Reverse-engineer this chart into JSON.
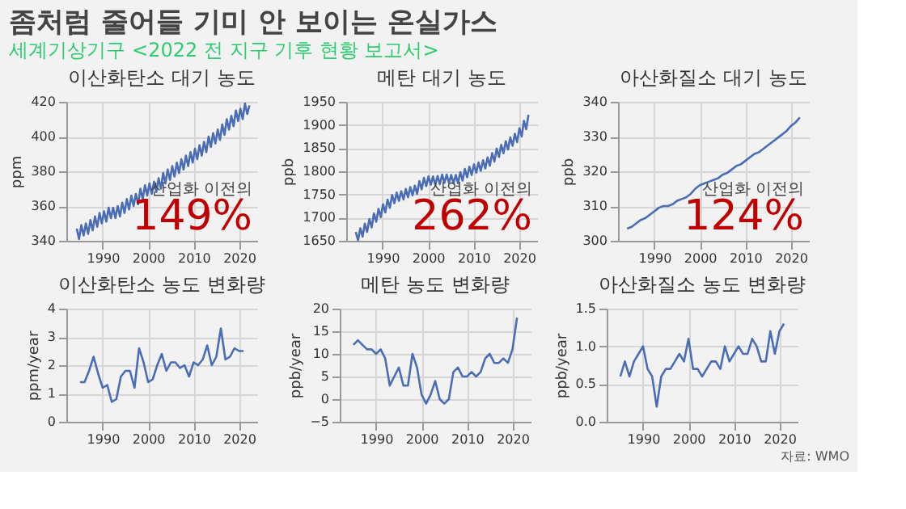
{
  "chart_data": [
    {
      "type": "other",
      "title": "좀처럼 줄어들 기미 안 보이는 온실가스",
      "subtitle": "세계기상기구 <2022 전 지구 기후 현황 보고서>",
      "annotations": [
        "자료: WMO"
      ]
    },
    {
      "type": "line",
      "title": "이산화탄소 대기 농도",
      "ylabel": "ppm",
      "xlim": [
        1982,
        2024
      ],
      "xticks": [
        1990,
        2000,
        2010,
        2020
      ],
      "ylim": [
        340,
        420
      ],
      "yticks": [
        340,
        360,
        380,
        400,
        420
      ],
      "grid": true,
      "annotations": [
        "산업화 이전의",
        "149%"
      ],
      "series": [
        {
          "color": "#4a6db5",
          "x": [
            1984.3,
            1984.8,
            1985.3,
            1985.8,
            1986.3,
            1986.8,
            1987.3,
            1987.8,
            1988.3,
            1988.8,
            1989.3,
            1989.8,
            1990.3,
            1990.8,
            1991.3,
            1991.8,
            1992.3,
            1992.8,
            1993.3,
            1993.8,
            1994.3,
            1994.8,
            1995.3,
            1995.8,
            1996.3,
            1996.8,
            1997.3,
            1997.8,
            1998.3,
            1998.8,
            1999.3,
            1999.8,
            2000.3,
            2000.8,
            2001.3,
            2001.8,
            2002.3,
            2002.8,
            2003.3,
            2003.8,
            2004.3,
            2004.8,
            2005.3,
            2005.8,
            2006.3,
            2006.8,
            2007.3,
            2007.8,
            2008.3,
            2008.8,
            2009.3,
            2009.8,
            2010.3,
            2010.8,
            2011.3,
            2011.8,
            2012.3,
            2012.8,
            2013.3,
            2013.8,
            2014.3,
            2014.8,
            2015.3,
            2015.8,
            2016.3,
            2016.8,
            2017.3,
            2017.8,
            2018.3,
            2018.8,
            2019.3,
            2019.8,
            2020.3,
            2020.8,
            2021.3,
            2021.8,
            2022.3
          ],
          "values": [
            347,
            341,
            349,
            343,
            350,
            344,
            352,
            346,
            354,
            348,
            356,
            350,
            357,
            351,
            359,
            353,
            359,
            353,
            360,
            354,
            362,
            356,
            364,
            358,
            366,
            360,
            367,
            361,
            370,
            364,
            372,
            366,
            373,
            367,
            374,
            368,
            376,
            370,
            379,
            373,
            381,
            375,
            383,
            377,
            385,
            379,
            387,
            381,
            389,
            383,
            391,
            385,
            393,
            387,
            395,
            389,
            397,
            391,
            400,
            394,
            402,
            396,
            404,
            398,
            407,
            401,
            410,
            404,
            412,
            406,
            415,
            409,
            416,
            410,
            419,
            413,
            418
          ]
        }
      ]
    },
    {
      "type": "line",
      "title": "메탄 대기 농도",
      "ylabel": "ppb",
      "xlim": [
        1982,
        2024
      ],
      "xticks": [
        1990,
        2000,
        2010,
        2020
      ],
      "ylim": [
        1650,
        1950
      ],
      "yticks": [
        1650,
        1700,
        1750,
        1800,
        1850,
        1900,
        1950
      ],
      "grid": true,
      "annotations": [
        "산업화 이전의",
        "262%"
      ],
      "series": [
        {
          "color": "#4a6db5",
          "x": [
            1984.1,
            1984.6,
            1985.1,
            1985.6,
            1986.1,
            1986.6,
            1987.1,
            1987.6,
            1988.1,
            1988.6,
            1989.1,
            1989.6,
            1990.1,
            1990.6,
            1991.1,
            1991.6,
            1992.1,
            1992.6,
            1993.1,
            1993.6,
            1994.1,
            1994.6,
            1995.1,
            1995.6,
            1996.1,
            1996.6,
            1997.1,
            1997.6,
            1998.1,
            1998.6,
            1999.1,
            1999.6,
            2000.1,
            2000.6,
            2001.1,
            2001.6,
            2002.1,
            2002.6,
            2003.1,
            2003.6,
            2004.1,
            2004.6,
            2005.1,
            2005.6,
            2006.1,
            2006.6,
            2007.1,
            2007.6,
            2008.1,
            2008.6,
            2009.1,
            2009.6,
            2010.1,
            2010.6,
            2011.1,
            2011.6,
            2012.1,
            2012.6,
            2013.1,
            2013.6,
            2014.1,
            2014.6,
            2015.1,
            2015.6,
            2016.1,
            2016.6,
            2017.1,
            2017.6,
            2018.1,
            2018.6,
            2019.1,
            2019.6,
            2020.1,
            2020.6,
            2021.1,
            2021.6,
            2022.1
          ],
          "values": [
            1669,
            1651,
            1677,
            1659,
            1687,
            1669,
            1697,
            1679,
            1709,
            1691,
            1719,
            1701,
            1729,
            1711,
            1739,
            1721,
            1749,
            1731,
            1754,
            1736,
            1757,
            1739,
            1762,
            1744,
            1766,
            1748,
            1769,
            1751,
            1779,
            1761,
            1786,
            1768,
            1789,
            1771,
            1789,
            1771,
            1790,
            1772,
            1793,
            1775,
            1793,
            1775,
            1792,
            1774,
            1792,
            1774,
            1798,
            1780,
            1805,
            1787,
            1810,
            1792,
            1815,
            1797,
            1819,
            1801,
            1824,
            1806,
            1830,
            1812,
            1839,
            1821,
            1849,
            1831,
            1857,
            1839,
            1865,
            1847,
            1873,
            1855,
            1881,
            1863,
            1893,
            1875,
            1909,
            1891,
            1922
          ]
        }
      ]
    },
    {
      "type": "line",
      "title": "아산화질소 대기 농도",
      "ylabel": "ppb",
      "xlim": [
        1982,
        2024
      ],
      "xticks": [
        1990,
        2000,
        2010,
        2020
      ],
      "ylim": [
        300,
        340
      ],
      "yticks": [
        300,
        310,
        320,
        330,
        340
      ],
      "grid": true,
      "annotations": [
        "산업화 이전의",
        "124%"
      ],
      "series": [
        {
          "color": "#4a6db5",
          "x": [
            1984,
            1985,
            1986,
            1987,
            1988,
            1989,
            1990,
            1991,
            1992,
            1993,
            1994,
            1995,
            1996,
            1997,
            1998,
            1999,
            2000,
            2001,
            2002,
            2003,
            2004,
            2005,
            2006,
            2007,
            2008,
            2009,
            2010,
            2011,
            2012,
            2013,
            2014,
            2015,
            2016,
            2017,
            2018,
            2019,
            2020,
            2021,
            2022
          ],
          "values": [
            303.5,
            304,
            305,
            306,
            306.5,
            307.5,
            308.5,
            309.5,
            310,
            310,
            310.5,
            311.5,
            312,
            312.5,
            313.5,
            315,
            316,
            316.5,
            317,
            317.5,
            318,
            319,
            319.5,
            320.5,
            321.5,
            322,
            323,
            324,
            325,
            325.5,
            326.5,
            327.5,
            328.5,
            329.5,
            330.5,
            331.5,
            333,
            334,
            335.5
          ]
        }
      ]
    },
    {
      "type": "line",
      "title": "이산화탄소 농도 변화량",
      "ylabel": "ppm/year",
      "xlim": [
        1982,
        2024
      ],
      "xticks": [
        1990,
        2000,
        2010,
        2020
      ],
      "ylim": [
        0,
        4
      ],
      "yticks": [
        0,
        1,
        2,
        3,
        4
      ],
      "grid": true,
      "series": [
        {
          "color": "#4a6db5",
          "x": [
            1985,
            1986,
            1987,
            1988,
            1989,
            1990,
            1991,
            1992,
            1993,
            1994,
            1995,
            1996,
            1997,
            1998,
            1999,
            2000,
            2001,
            2002,
            2003,
            2004,
            2005,
            2006,
            2007,
            2008,
            2009,
            2010,
            2011,
            2012,
            2013,
            2014,
            2015,
            2016,
            2017,
            2018,
            2019,
            2020,
            2021
          ],
          "values": [
            1.4,
            1.4,
            1.8,
            2.3,
            1.7,
            1.2,
            1.3,
            0.7,
            0.8,
            1.6,
            1.8,
            1.8,
            1.2,
            2.6,
            2.1,
            1.4,
            1.5,
            2.0,
            2.4,
            1.8,
            2.1,
            2.1,
            1.9,
            2.0,
            1.6,
            2.1,
            2.0,
            2.2,
            2.7,
            2.0,
            2.3,
            3.3,
            2.2,
            2.3,
            2.6,
            2.5,
            2.5
          ]
        }
      ]
    },
    {
      "type": "line",
      "title": "메탄 농도 변화량",
      "ylabel": "ppb/year",
      "xlim": [
        1982,
        2024
      ],
      "xticks": [
        1990,
        2000,
        2010,
        2020
      ],
      "ylim": [
        -5,
        20
      ],
      "yticks": [
        -5,
        0,
        5,
        10,
        15,
        20
      ],
      "grid": true,
      "series": [
        {
          "color": "#4a6db5",
          "x": [
            1985,
            1986,
            1987,
            1988,
            1989,
            1990,
            1991,
            1992,
            1993,
            1994,
            1995,
            1996,
            1997,
            1998,
            1999,
            2000,
            2001,
            2002,
            2003,
            2004,
            2005,
            2006,
            2007,
            2008,
            2009,
            2010,
            2011,
            2012,
            2013,
            2014,
            2015,
            2016,
            2017,
            2018,
            2019,
            2020,
            2021
          ],
          "values": [
            12,
            13,
            12,
            11,
            11,
            10,
            11,
            9,
            3,
            5,
            7,
            3,
            3,
            10,
            7,
            1,
            -1,
            1,
            4,
            0,
            -1,
            0,
            6,
            7,
            5,
            5,
            6,
            5,
            6,
            9,
            10,
            8,
            8,
            9,
            8,
            11,
            18
          ]
        }
      ]
    },
    {
      "type": "line",
      "title": "아산화질소 농도 변화량",
      "ylabel": "ppb/year",
      "xlim": [
        1982,
        2024
      ],
      "xticks": [
        1990,
        2000,
        2010,
        2020
      ],
      "ylim": [
        0,
        1.5
      ],
      "yticks": [
        {
          "value": 0,
          "label": "0.0"
        },
        0.5,
        {
          "value": 1,
          "label": "1.0"
        },
        1.5
      ],
      "grid": true,
      "series": [
        {
          "color": "#4a6db5",
          "x": [
            1985,
            1986,
            1987,
            1988,
            1989,
            1990,
            1991,
            1992,
            1993,
            1994,
            1995,
            1996,
            1997,
            1998,
            1999,
            2000,
            2001,
            2002,
            2003,
            2004,
            2005,
            2006,
            2007,
            2008,
            2009,
            2010,
            2011,
            2012,
            2013,
            2014,
            2015,
            2016,
            2017,
            2018,
            2019,
            2020,
            2021
          ],
          "values": [
            0.6,
            0.8,
            0.6,
            0.8,
            0.9,
            1.0,
            0.7,
            0.6,
            0.2,
            0.6,
            0.7,
            0.7,
            0.8,
            0.9,
            0.8,
            1.1,
            0.7,
            0.7,
            0.6,
            0.7,
            0.8,
            0.8,
            0.7,
            1.0,
            0.8,
            0.9,
            1.0,
            0.9,
            0.9,
            1.1,
            1.0,
            0.8,
            0.8,
            1.2,
            0.9,
            1.2,
            1.3
          ]
        }
      ]
    }
  ]
}
